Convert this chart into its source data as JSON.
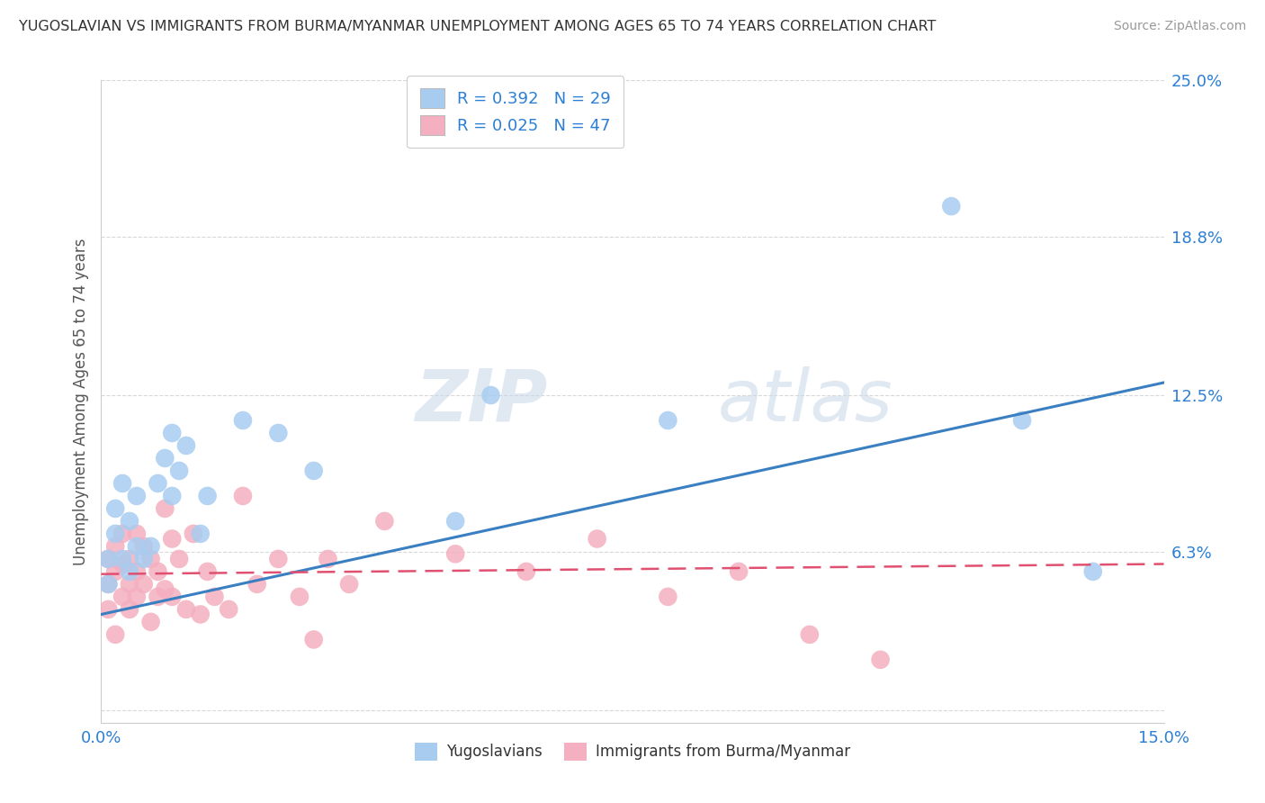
{
  "title": "YUGOSLAVIAN VS IMMIGRANTS FROM BURMA/MYANMAR UNEMPLOYMENT AMONG AGES 65 TO 74 YEARS CORRELATION CHART",
  "source": "Source: ZipAtlas.com",
  "ylabel": "Unemployment Among Ages 65 to 74 years",
  "xlim": [
    0.0,
    0.15
  ],
  "ylim": [
    -0.005,
    0.25
  ],
  "ytick_vals": [
    0.0,
    0.063,
    0.125,
    0.188,
    0.25
  ],
  "ytick_labels": [
    "",
    "6.3%",
    "12.5%",
    "18.8%",
    "25.0%"
  ],
  "xtick_vals": [
    0.0,
    0.05,
    0.1,
    0.15
  ],
  "xtick_labels": [
    "0.0%",
    "",
    "",
    "15.0%"
  ],
  "series1_color": "#a8ccf0",
  "series2_color": "#f4afc0",
  "line1_color": "#3a7fc1",
  "line2_color": "#e05070",
  "R1": 0.392,
  "N1": 29,
  "R2": 0.025,
  "N2": 47,
  "legend_label1": "Yugoslavians",
  "legend_label2": "Immigrants from Burma/Myanmar",
  "watermark_zip": "ZIP",
  "watermark_atlas": "atlas",
  "background_color": "#ffffff",
  "grid_color": "#d8d8d8",
  "blue_line_y0": 0.038,
  "blue_line_y1": 0.13,
  "pink_line_y0": 0.054,
  "pink_line_y1": 0.058,
  "series1_x": [
    0.001,
    0.001,
    0.002,
    0.002,
    0.003,
    0.003,
    0.004,
    0.004,
    0.005,
    0.005,
    0.006,
    0.007,
    0.008,
    0.009,
    0.01,
    0.01,
    0.011,
    0.012,
    0.014,
    0.015,
    0.02,
    0.025,
    0.03,
    0.05,
    0.055,
    0.08,
    0.12,
    0.13,
    0.14
  ],
  "series1_y": [
    0.05,
    0.06,
    0.07,
    0.08,
    0.06,
    0.09,
    0.055,
    0.075,
    0.065,
    0.085,
    0.06,
    0.065,
    0.09,
    0.1,
    0.085,
    0.11,
    0.095,
    0.105,
    0.07,
    0.085,
    0.115,
    0.11,
    0.095,
    0.075,
    0.125,
    0.115,
    0.2,
    0.115,
    0.055
  ],
  "series2_x": [
    0.001,
    0.001,
    0.001,
    0.002,
    0.002,
    0.002,
    0.003,
    0.003,
    0.003,
    0.004,
    0.004,
    0.004,
    0.005,
    0.005,
    0.005,
    0.006,
    0.006,
    0.007,
    0.007,
    0.008,
    0.008,
    0.009,
    0.009,
    0.01,
    0.01,
    0.011,
    0.012,
    0.013,
    0.014,
    0.015,
    0.016,
    0.018,
    0.02,
    0.022,
    0.025,
    0.028,
    0.03,
    0.032,
    0.035,
    0.04,
    0.05,
    0.06,
    0.07,
    0.08,
    0.09,
    0.1,
    0.11
  ],
  "series2_y": [
    0.06,
    0.05,
    0.04,
    0.065,
    0.055,
    0.03,
    0.07,
    0.058,
    0.045,
    0.06,
    0.05,
    0.04,
    0.07,
    0.055,
    0.045,
    0.065,
    0.05,
    0.06,
    0.035,
    0.055,
    0.045,
    0.08,
    0.048,
    0.068,
    0.045,
    0.06,
    0.04,
    0.07,
    0.038,
    0.055,
    0.045,
    0.04,
    0.085,
    0.05,
    0.06,
    0.045,
    0.028,
    0.06,
    0.05,
    0.075,
    0.062,
    0.055,
    0.068,
    0.045,
    0.055,
    0.03,
    0.02
  ]
}
